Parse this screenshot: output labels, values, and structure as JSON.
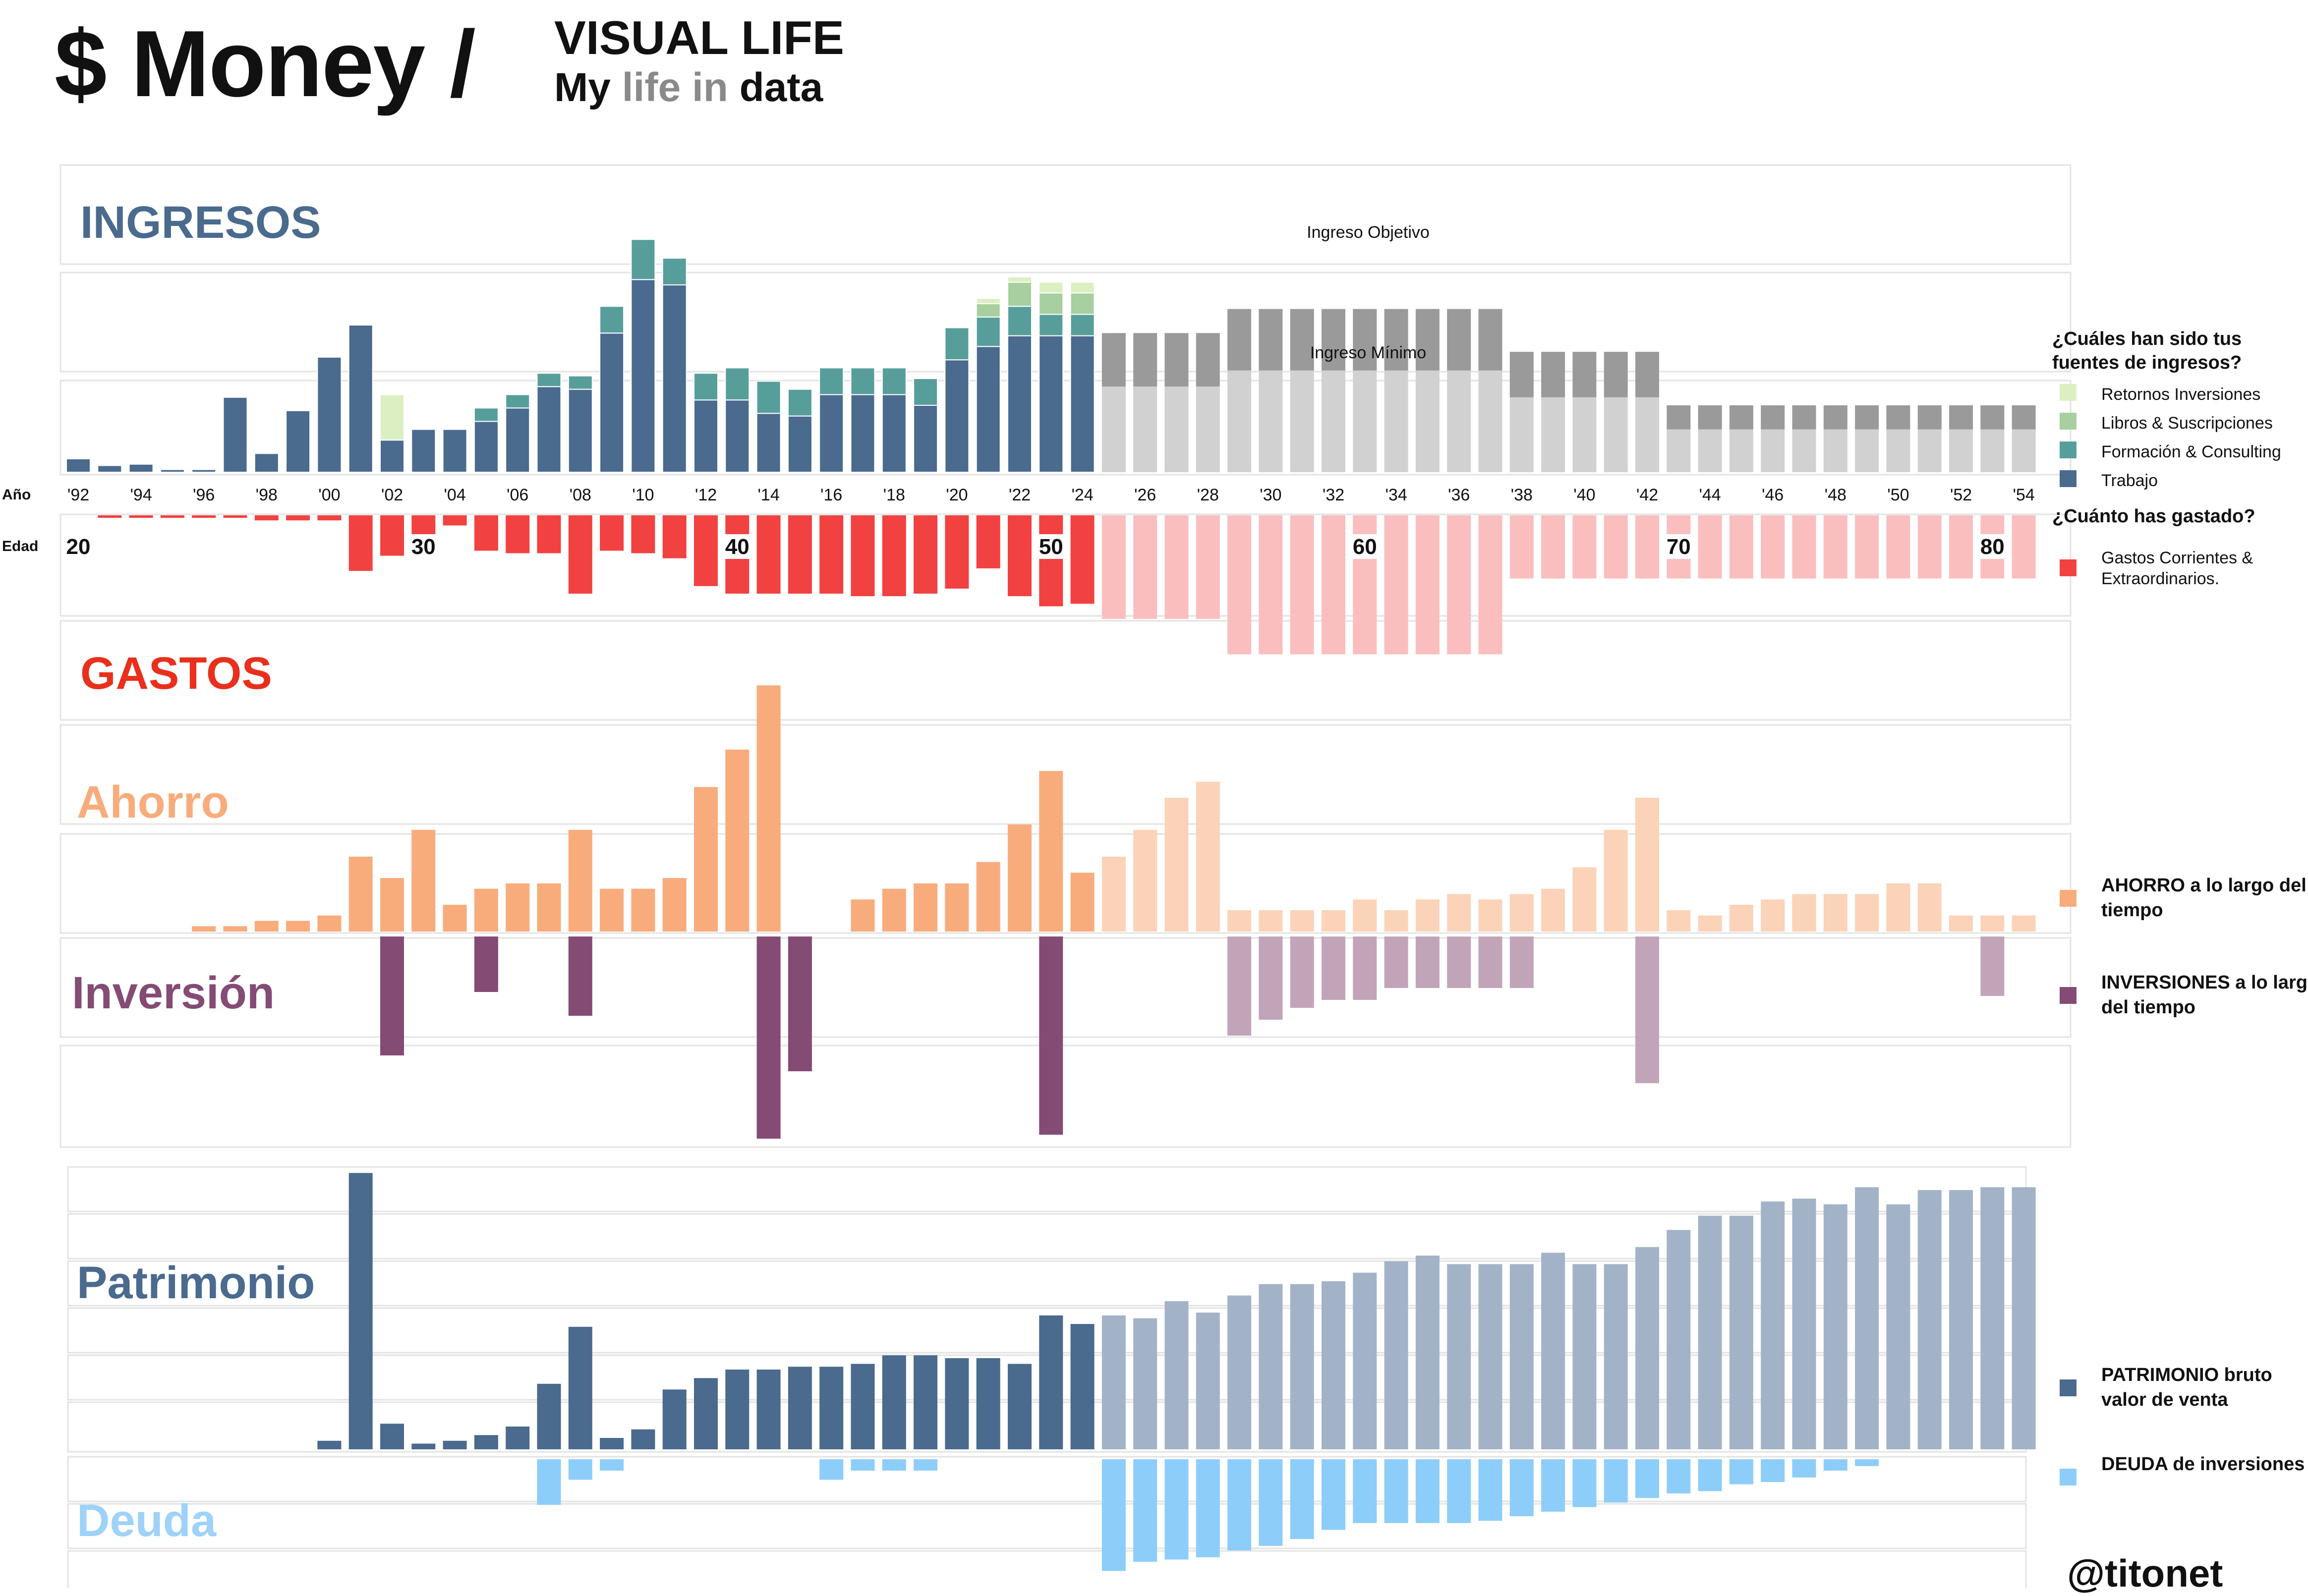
{
  "header": {
    "title": "$ Money /",
    "subtitle_line1": "VISUAL LIFE",
    "subtitle_my": "My",
    "subtitle_life_in": "life in",
    "subtitle_data": "data"
  },
  "handle": "@titonet",
  "colors": {
    "trabajo": "#4a6a8e",
    "formacion": "#579e9b",
    "libros": "#a8cf9f",
    "retornos": "#dcefc3",
    "proj_dark": "#9a9a9a",
    "proj_light": "#d1d1d1",
    "gastos": "#f24141",
    "gastos_proj": "#fbbebe",
    "ahorro": "#f8ac7c",
    "ahorro_proj": "#fbd3b8",
    "inversion": "#844b74",
    "inversion_proj": "#c2a4b9",
    "patrimonio": "#4a6a8e",
    "patrimonio_proj": "#a3b3c7",
    "deuda": "#8dcdfa",
    "section_ingresos": "#4a6a8e",
    "section_gastos": "#e8301c",
    "section_ahorro": "#f8ac7c",
    "section_inversion": "#844b74",
    "section_patrimonio": "#4a6a8e",
    "section_deuda": "#9ed2f8"
  },
  "legend": {
    "income_question": "¿Cuáles han sido tus fuentes de ingresos?",
    "income_items": [
      {
        "label": "Retornos Inversiones",
        "color": "#dcefc3"
      },
      {
        "label": "Libros & Suscripciones",
        "color": "#a8cf9f"
      },
      {
        "label": "Formación & Consulting",
        "color": "#579e9b"
      },
      {
        "label": "Trabajo",
        "color": "#4a6a8e"
      }
    ],
    "spend_question": "¿Cuánto has gastado?",
    "spend_item": {
      "label": "Gastos Corrientes & Extraordinarios.",
      "color": "#f24141"
    },
    "ahorro_item": {
      "label": "AHORRO a lo largo del tiempo",
      "color": "#f8ac7c"
    },
    "inversion_item": {
      "label": "INVERSIONES a lo largo del tiempo",
      "color": "#844b74"
    },
    "patrimonio_item": {
      "label": "PATRIMONIO bruto valor de venta",
      "color": "#4a6a8e"
    },
    "deuda_item": {
      "label": "DEUDA de inversiones",
      "color": "#8dcdfa"
    }
  },
  "chart_data": {
    "type": "bar",
    "stacked": true,
    "title": "Money / VISUAL LIFE — My life in data",
    "x_label_row": "Año",
    "age_label_row": "Edad",
    "x": [
      1992,
      1993,
      1994,
      1995,
      1996,
      1997,
      1998,
      1999,
      2000,
      2001,
      2002,
      2003,
      2004,
      2005,
      2006,
      2007,
      2008,
      2009,
      2010,
      2011,
      2012,
      2013,
      2014,
      2015,
      2016,
      2017,
      2018,
      2019,
      2020,
      2021,
      2022,
      2023,
      2024,
      2025,
      2026,
      2027,
      2028,
      2029,
      2030,
      2031,
      2032,
      2033,
      2034,
      2035,
      2036,
      2037,
      2038,
      2039,
      2040,
      2041,
      2042,
      2043,
      2044,
      2045,
      2046,
      2047,
      2048,
      2049,
      2050,
      2051,
      2052,
      2053,
      2054
    ],
    "tick_labels": [
      "'92",
      "'94",
      "'96",
      "'98",
      "'00",
      "'02",
      "'04",
      "'06",
      "'08",
      "'10",
      "'12",
      "'14",
      "'16",
      "'18",
      "'20",
      "'22",
      "'24",
      "'26",
      "'28",
      "'30",
      "'32",
      "'34",
      "'36",
      "'38",
      "'40",
      "'42",
      "'44",
      "'46",
      "'48",
      "'50",
      "'52",
      "'54"
    ],
    "age_labels": [
      {
        "year": 1992,
        "label": "20"
      },
      {
        "year": 2003,
        "label": "30"
      },
      {
        "year": 2013,
        "label": "40"
      },
      {
        "year": 2023,
        "label": "50"
      },
      {
        "year": 2033,
        "label": "60"
      },
      {
        "year": 2043,
        "label": "70"
      },
      {
        "year": 2053,
        "label": "80"
      }
    ],
    "last_actual_year": 2024,
    "ingresos": {
      "section_label": "INGRESOS",
      "series": [
        {
          "name": "Trabajo",
          "values": [
            5,
            2.5,
            3,
            1,
            1,
            28,
            7,
            23,
            43,
            55,
            12,
            16,
            16,
            19,
            24,
            32,
            31,
            52,
            72,
            70,
            27,
            27,
            22,
            21,
            29,
            29,
            29,
            25,
            42,
            47,
            51,
            51,
            51,
            0,
            0,
            0,
            0,
            0,
            0,
            0,
            0,
            0,
            0,
            0,
            0,
            0,
            0,
            0,
            0,
            0,
            0,
            0,
            0,
            0,
            0,
            0,
            0,
            0,
            0,
            0,
            0,
            0,
            0
          ]
        },
        {
          "name": "Formación & Consulting",
          "values": [
            0,
            0,
            0,
            0,
            0,
            0,
            0,
            0,
            0,
            0,
            0,
            0,
            0,
            5,
            5,
            5,
            5,
            10,
            15,
            10,
            10,
            12,
            12,
            10,
            10,
            10,
            10,
            10,
            12,
            11,
            11,
            8,
            8,
            0,
            0,
            0,
            0,
            0,
            0,
            0,
            0,
            0,
            0,
            0,
            0,
            0,
            0,
            0,
            0,
            0,
            0,
            0,
            0,
            0,
            0,
            0,
            0,
            0,
            0,
            0,
            0,
            0,
            0
          ]
        },
        {
          "name": "Libros & Suscripciones",
          "values": [
            0,
            0,
            0,
            0,
            0,
            0,
            0,
            0,
            0,
            0,
            0,
            0,
            0,
            0,
            0,
            0,
            0,
            0,
            0,
            0,
            0,
            0,
            0,
            0,
            0,
            0,
            0,
            0,
            0,
            5,
            9,
            8,
            8,
            0,
            0,
            0,
            0,
            0,
            0,
            0,
            0,
            0,
            0,
            0,
            0,
            0,
            0,
            0,
            0,
            0,
            0,
            0,
            0,
            0,
            0,
            0,
            0,
            0,
            0,
            0,
            0,
            0,
            0
          ]
        },
        {
          "name": "Retornos Inversiones",
          "values": [
            0,
            0,
            0,
            0,
            0,
            0,
            0,
            0,
            0,
            0,
            17,
            0,
            0,
            0,
            0,
            0,
            0,
            0,
            0,
            0,
            0,
            0,
            0,
            0,
            0,
            0,
            0,
            0,
            0,
            2,
            2,
            4,
            4,
            0,
            0,
            0,
            0,
            0,
            0,
            0,
            0,
            0,
            0,
            0,
            0,
            0,
            0,
            0,
            0,
            0,
            0,
            0,
            0,
            0,
            0,
            0,
            0,
            0,
            0,
            0,
            0,
            0,
            0
          ]
        },
        {
          "name": "Ingreso Mínimo (proyección)",
          "values": [
            0,
            0,
            0,
            0,
            0,
            0,
            0,
            0,
            0,
            0,
            0,
            0,
            0,
            0,
            0,
            0,
            0,
            0,
            0,
            0,
            0,
            0,
            0,
            0,
            0,
            0,
            0,
            0,
            0,
            0,
            0,
            0,
            0,
            32,
            32,
            32,
            32,
            38,
            38,
            38,
            38,
            38,
            38,
            38,
            38,
            38,
            28,
            28,
            28,
            28,
            28,
            16,
            16,
            16,
            16,
            16,
            16,
            16,
            16,
            16,
            16,
            16,
            16
          ]
        },
        {
          "name": "Ingreso Objetivo (proyección)",
          "values": [
            0,
            0,
            0,
            0,
            0,
            0,
            0,
            0,
            0,
            0,
            0,
            0,
            0,
            0,
            0,
            0,
            0,
            0,
            0,
            0,
            0,
            0,
            0,
            0,
            0,
            0,
            0,
            0,
            0,
            0,
            0,
            0,
            0,
            20,
            20,
            20,
            20,
            23,
            23,
            23,
            23,
            23,
            23,
            23,
            23,
            23,
            17,
            17,
            17,
            17,
            17,
            9,
            9,
            9,
            9,
            9,
            9,
            9,
            9,
            9,
            9,
            9,
            9
          ]
        }
      ],
      "annotations": [
        "Ingreso Objetivo",
        "Ingreso Mínimo"
      ]
    },
    "gastos": {
      "section_label": "GASTOS",
      "values": [
        0,
        1,
        1,
        1,
        1,
        1,
        2,
        2,
        2,
        22,
        16,
        9,
        4,
        14,
        15,
        15,
        31,
        14,
        15,
        17,
        28,
        31,
        31,
        31,
        31,
        32,
        32,
        31,
        29,
        21,
        32,
        36,
        35,
        41,
        41,
        41,
        41,
        55,
        55,
        55,
        55,
        55,
        55,
        55,
        55,
        55,
        25,
        25,
        25,
        25,
        25,
        25,
        25,
        25,
        25,
        25,
        25,
        25,
        25,
        25,
        25,
        25,
        25
      ]
    },
    "ahorro": {
      "section_label": "Ahorro",
      "values": [
        0,
        0,
        0,
        0,
        1,
        1,
        2,
        2,
        3,
        14,
        10,
        19,
        5,
        8,
        9,
        9,
        19,
        8,
        8,
        10,
        27,
        34,
        46,
        0,
        0,
        6,
        8,
        9,
        9,
        13,
        20,
        30,
        11,
        14,
        19,
        25,
        28,
        4,
        4,
        4,
        4,
        6,
        4,
        6,
        7,
        6,
        7,
        8,
        12,
        19,
        25,
        4,
        3,
        5,
        6,
        7,
        7,
        7,
        9,
        9,
        3,
        3,
        3
      ]
    },
    "inversion": {
      "section_label": "Inversión",
      "values": [
        0,
        0,
        0,
        0,
        0,
        0,
        0,
        0,
        0,
        0,
        -30,
        0,
        0,
        -14,
        0,
        0,
        -20,
        0,
        0,
        0,
        0,
        0,
        -51,
        -34,
        0,
        0,
        0,
        0,
        0,
        0,
        0,
        -50,
        0,
        0,
        0,
        0,
        0,
        -25,
        -21,
        -18,
        -16,
        -16,
        -13,
        -13,
        -13,
        -13,
        -13,
        0,
        0,
        0,
        -37,
        0,
        0,
        0,
        0,
        0,
        0,
        0,
        0,
        0,
        0,
        -15,
        0
      ]
    },
    "patrimonio": {
      "section_label": "Patrimonio",
      "values": [
        0,
        0,
        0,
        0,
        0,
        0,
        0,
        0,
        3,
        97,
        9,
        2,
        3,
        5,
        8,
        23,
        43,
        4,
        7,
        21,
        25,
        28,
        28,
        29,
        29,
        30,
        33,
        33,
        32,
        32,
        30,
        47,
        44,
        47,
        46,
        52,
        48,
        54,
        58,
        58,
        59,
        62,
        66,
        68,
        65,
        65,
        65,
        69,
        65,
        65,
        71,
        77,
        82,
        82,
        87,
        88,
        86,
        92,
        86,
        91,
        91,
        92,
        92
      ]
    },
    "deuda": {
      "section_label": "Deuda",
      "values": [
        0,
        0,
        0,
        0,
        0,
        0,
        0,
        0,
        0,
        0,
        0,
        0,
        0,
        0,
        0,
        -20,
        -9,
        -5,
        0,
        0,
        0,
        0,
        0,
        0,
        -9,
        -5,
        -5,
        -5,
        0,
        0,
        0,
        0,
        0,
        -49,
        -45,
        -44,
        -43,
        -40,
        -38,
        -35,
        -31,
        -28,
        -28,
        -28,
        -28,
        -27,
        -25,
        -23,
        -21,
        -19,
        -17,
        -15,
        -14,
        -11,
        -10,
        -8,
        -5,
        -3,
        0,
        0,
        0,
        0,
        0
      ]
    }
  }
}
